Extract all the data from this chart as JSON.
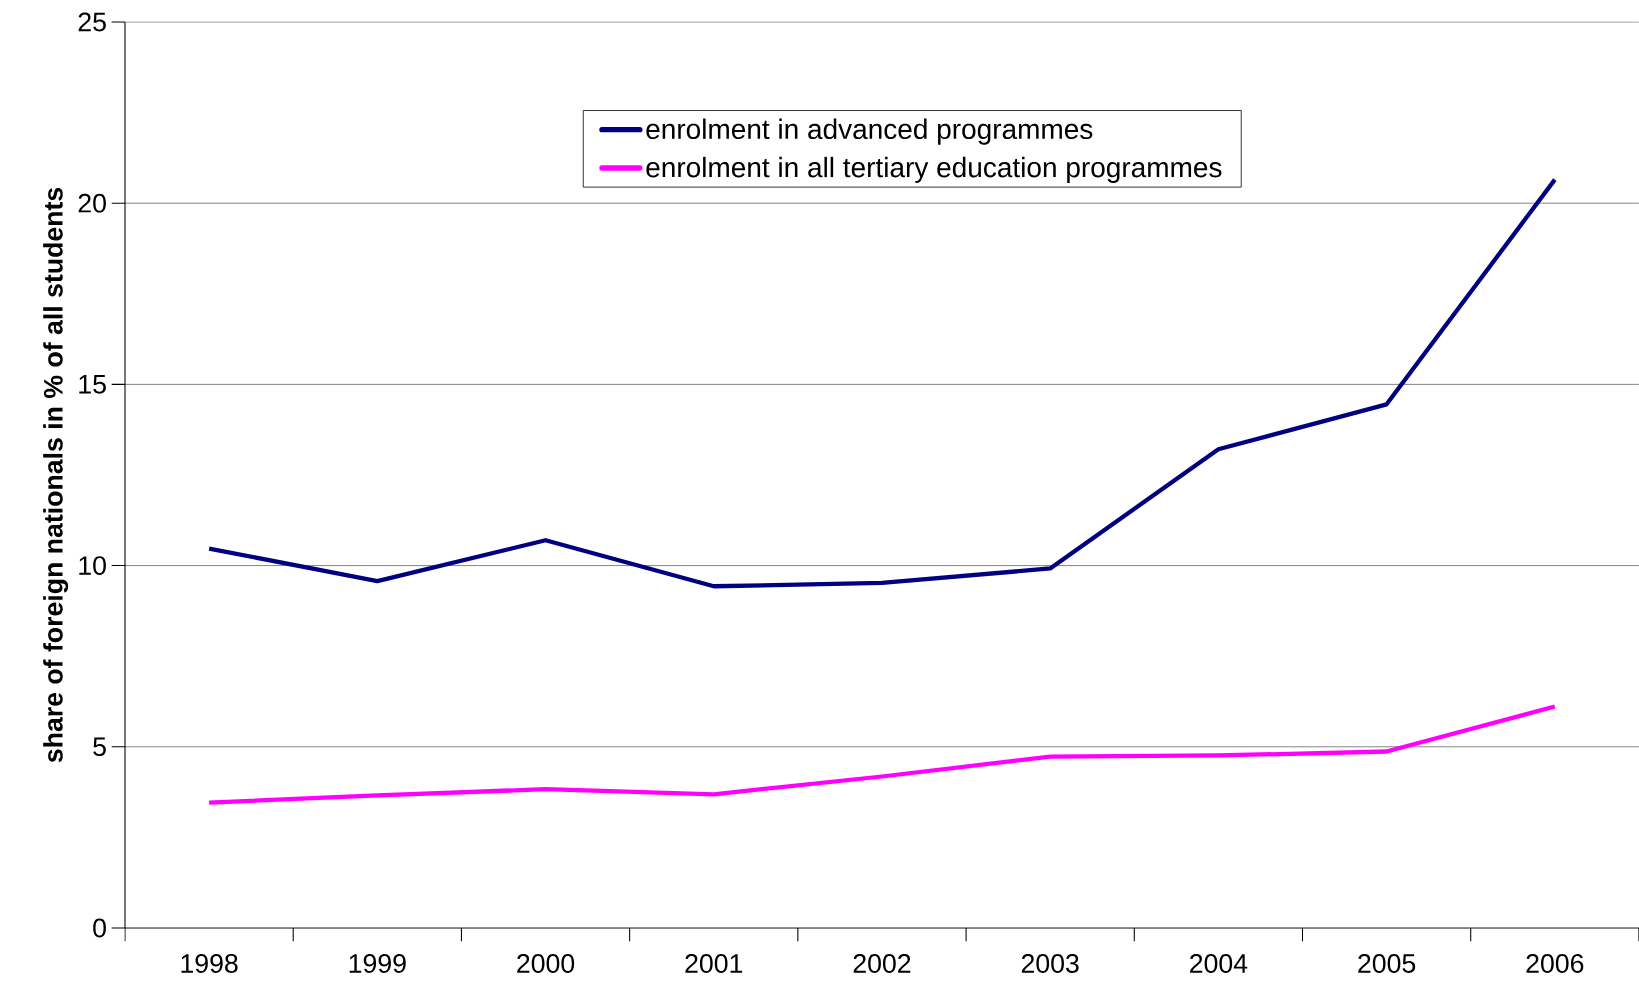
{
  "chart_data": {
    "type": "line",
    "ylabel": "share of foreign nationals in % of all students",
    "categories": [
      "1998",
      "1999",
      "2000",
      "2001",
      "2002",
      "2003",
      "2004",
      "2005",
      "2006"
    ],
    "series": [
      {
        "name": "enrolment in advanced programmes",
        "color": "#000080",
        "values": [
          10.47,
          9.57,
          10.7,
          9.43,
          9.52,
          9.92,
          13.21,
          14.45,
          20.65
        ]
      },
      {
        "name": "enrolment in all tertiary education programmes",
        "color": "#ff00ff",
        "values": [
          3.46,
          3.66,
          3.83,
          3.69,
          4.18,
          4.73,
          4.76,
          4.87,
          6.11
        ]
      }
    ],
    "ylim": [
      0,
      25
    ],
    "yticks": [
      0,
      5,
      10,
      15,
      20,
      25
    ],
    "grid": "y",
    "legend": "top",
    "marker": "none",
    "line_style": "solid"
  }
}
